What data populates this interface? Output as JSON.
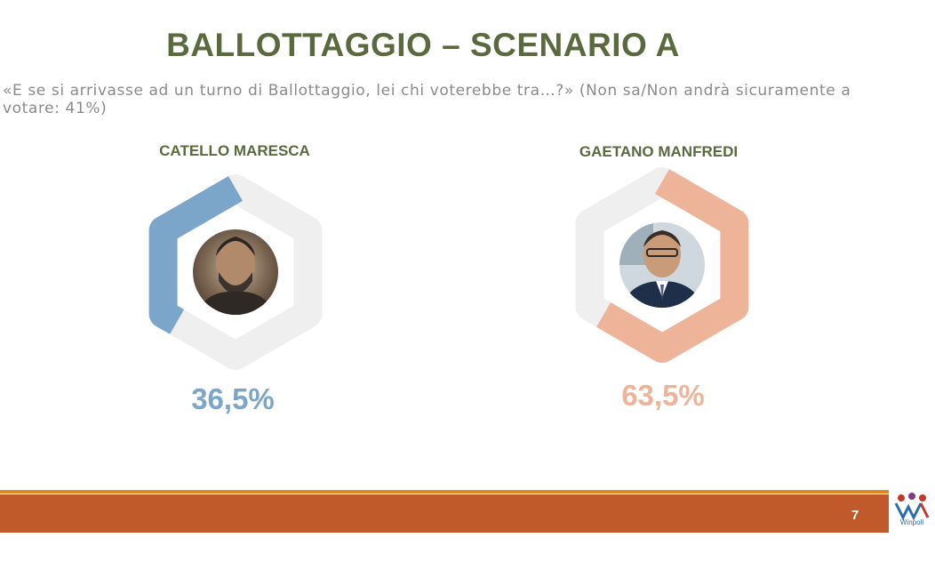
{
  "slide": {
    "title": "BALLOTTAGGIO – SCENARIO A",
    "question": "«E se si arrivasse ad un turno di Ballottaggio, lei chi voterebbe tra…?» (Non sa/Non andrà sicuramente a\nvotare: 41%)",
    "page_number": "7",
    "logo_text": "Winpoll"
  },
  "colors": {
    "maresca": "#7ca6c9",
    "manfredi": "#edb49a",
    "ring_background": "#efefef",
    "title": "#5a6a3e",
    "footer": "#c05a2a",
    "footer_line": "#e0861e"
  },
  "chart_data": {
    "type": "pie",
    "series": [
      {
        "name": "CATELLO MARESCA",
        "value": 36.5,
        "label": "36,5%",
        "color": "#7ca6c9"
      },
      {
        "name": "GAETANO MANFREDI",
        "value": 63.5,
        "label": "63,5%",
        "color": "#edb49a"
      }
    ]
  }
}
